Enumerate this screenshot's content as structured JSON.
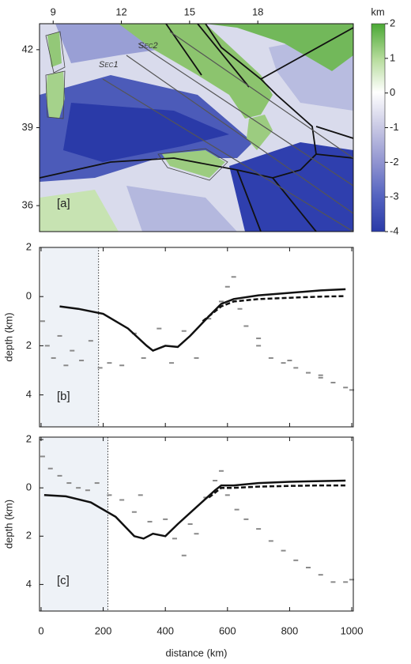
{
  "chart_data": [
    {
      "type": "map",
      "xlim": [
        8.4,
        22.2
      ],
      "ylim": [
        35,
        43
      ],
      "xticks": [
        9,
        12,
        15,
        18
      ],
      "yticks": [
        36,
        39,
        42
      ],
      "annotations": [
        "Sec1",
        "Sec2"
      ],
      "panel_label": "[a]",
      "colorbar": {
        "label": "km",
        "lim": [
          2,
          -4
        ],
        "ticks": [
          2,
          1,
          0,
          -1,
          -2,
          -3,
          -4
        ]
      }
    },
    {
      "type": "line",
      "panel_label": "[b]",
      "ylabel": "depth (km)",
      "xlim": [
        -5,
        1005
      ],
      "xticks": [
        0,
        200,
        400,
        600,
        800,
        1000
      ],
      "ylim": [
        -2,
        5.3
      ],
      "yticks": [
        {
          "value": -2,
          "label": "2"
        },
        0,
        2,
        4
      ],
      "shade_x": [
        0,
        185
      ],
      "series": [
        {
          "style": "points",
          "color": "#8a8a8a",
          "x": [
            5,
            20,
            40,
            60,
            80,
            100,
            130,
            160,
            190,
            220,
            260,
            300,
            330,
            380,
            420,
            460,
            500,
            540,
            580,
            600,
            620,
            640,
            660,
            700,
            700,
            740,
            780,
            800,
            820,
            860,
            900,
            900,
            940,
            980,
            1000
          ],
          "values": [
            1.0,
            2.0,
            2.5,
            1.6,
            2.8,
            2.2,
            2.6,
            1.8,
            2.9,
            2.7,
            2.8,
            1.5,
            2.5,
            1.3,
            2.7,
            1.4,
            2.5,
            0.9,
            0.2,
            -0.4,
            -0.8,
            0.5,
            1.2,
            2.0,
            1.7,
            2.5,
            2.7,
            2.6,
            2.9,
            3.1,
            3.3,
            3.2,
            3.5,
            3.7,
            3.8
          ]
        },
        {
          "style": "solid",
          "color": "#111111",
          "x": [
            60,
            120,
            200,
            280,
            340,
            360,
            400,
            440,
            480,
            540,
            580,
            620,
            700,
            800,
            900,
            980
          ],
          "values": [
            0.4,
            0.5,
            0.7,
            1.3,
            2.0,
            2.2,
            2.0,
            2.05,
            1.6,
            0.8,
            0.3,
            0.1,
            -0.05,
            -0.15,
            -0.25,
            -0.3
          ]
        },
        {
          "style": "dashed",
          "color": "#111111",
          "x": [
            520,
            580,
            620,
            700,
            800,
            900,
            980
          ],
          "values": [
            1.0,
            0.4,
            0.2,
            0.1,
            0.05,
            0.0,
            -0.02
          ]
        }
      ]
    },
    {
      "type": "line",
      "panel_label": "[c]",
      "ylabel": "depth (km)",
      "xlabel": "distance (km)",
      "xlim": [
        -5,
        1005
      ],
      "xticks": [
        0,
        200,
        400,
        600,
        800,
        1000
      ],
      "ylim": [
        -2.1,
        5.1
      ],
      "yticks": [
        {
          "value": -2,
          "label": "2"
        },
        0,
        2,
        4
      ],
      "shade_x": [
        0,
        215
      ],
      "series": [
        {
          "style": "points",
          "color": "#8a8a8a",
          "x": [
            5,
            30,
            60,
            90,
            120,
            150,
            180,
            220,
            260,
            300,
            320,
            350,
            400,
            430,
            460,
            480,
            500,
            530,
            560,
            580,
            600,
            630,
            660,
            700,
            740,
            780,
            820,
            860,
            900,
            940,
            980,
            1000
          ],
          "values": [
            -1.3,
            -0.8,
            -0.5,
            -0.2,
            0,
            0.1,
            -0.2,
            0.3,
            0.5,
            1.0,
            0.3,
            1.4,
            1.3,
            2.1,
            2.8,
            1.5,
            1.9,
            0.4,
            -0.3,
            -0.7,
            0.3,
            0.9,
            1.3,
            1.7,
            2.2,
            2.6,
            3.0,
            3.3,
            3.6,
            3.9,
            3.9,
            3.8
          ]
        },
        {
          "style": "solid",
          "color": "#111111",
          "x": [
            10,
            80,
            160,
            240,
            300,
            330,
            360,
            400,
            440,
            500,
            560,
            580,
            620,
            700,
            800,
            900,
            980
          ],
          "values": [
            0.3,
            0.35,
            0.6,
            1.2,
            2.0,
            2.1,
            1.9,
            2.0,
            1.5,
            0.8,
            0.1,
            -0.1,
            -0.1,
            -0.2,
            -0.25,
            -0.28,
            -0.3
          ]
        },
        {
          "style": "dashed",
          "color": "#111111",
          "x": [
            540,
            580,
            620,
            700,
            800,
            900,
            980
          ],
          "values": [
            0.4,
            0.0,
            0.0,
            -0.05,
            -0.08,
            -0.1,
            -0.1
          ]
        }
      ]
    }
  ]
}
